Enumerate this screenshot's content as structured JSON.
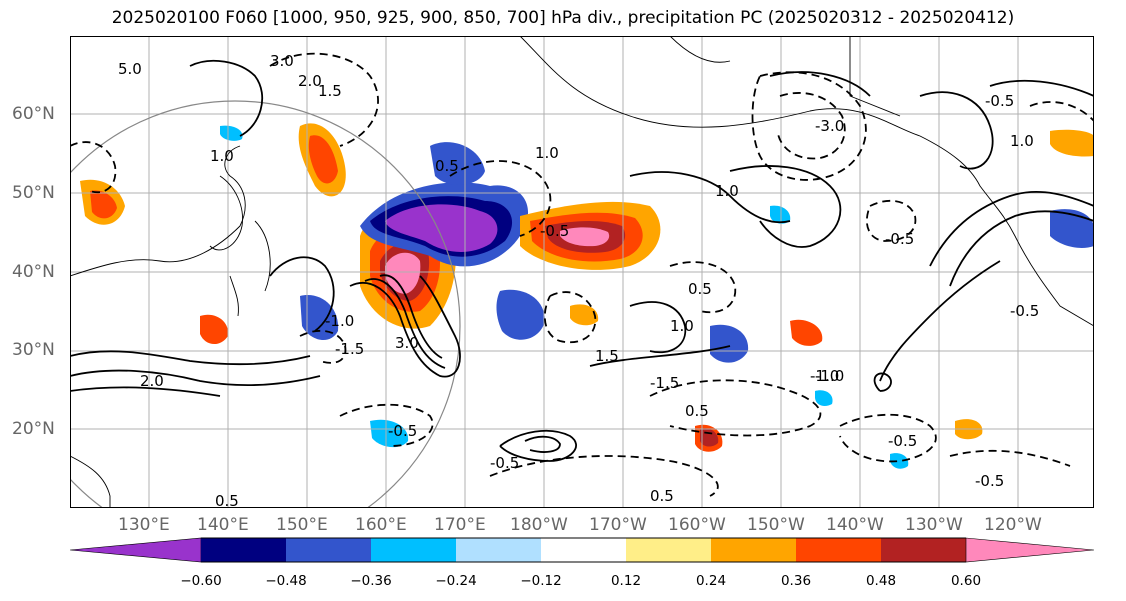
{
  "title": "2025020100 F060 [1000, 950, 925, 900, 850, 700] hPa div., precipitation PC (2025020312 - 2025020412)",
  "lat_labels": [
    "60°N",
    "50°N",
    "40°N",
    "30°N",
    "20°N"
  ],
  "lon_labels": [
    "130°E",
    "140°E",
    "150°E",
    "160°E",
    "170°E",
    "180°W",
    "170°W",
    "160°W",
    "150°W",
    "140°W",
    "130°W",
    "120°W"
  ],
  "colorbar": {
    "ticks": [
      "−0.60",
      "−0.48",
      "−0.36",
      "−0.24",
      "−0.12",
      "0.12",
      "0.24",
      "0.36",
      "0.48",
      "0.60"
    ],
    "colors": [
      "#9933cc",
      "#000080",
      "#3355cc",
      "#00bfff",
      "#b0e0ff",
      "#ffffff",
      "#ffee88",
      "#ffa500",
      "#ff4500",
      "#b22222",
      "#ff88bb"
    ]
  },
  "contour_labels": [
    "5.0",
    "3.0",
    "2.0",
    "1.5",
    "1.0",
    "0.5",
    "-0.5",
    "-1.0",
    "-1.5",
    "2.0",
    "3.0",
    "1.0",
    "1.5",
    "1.0",
    "0.5",
    "-0.5",
    "-1.0",
    "-1.5",
    "0.5",
    "1.0",
    "-0.5",
    "-0.5",
    "-0.5",
    "-1.0",
    "-3.0",
    "0.5",
    "1.0",
    "-0.5",
    "0.5",
    "-0.5",
    "-0.5"
  ]
}
